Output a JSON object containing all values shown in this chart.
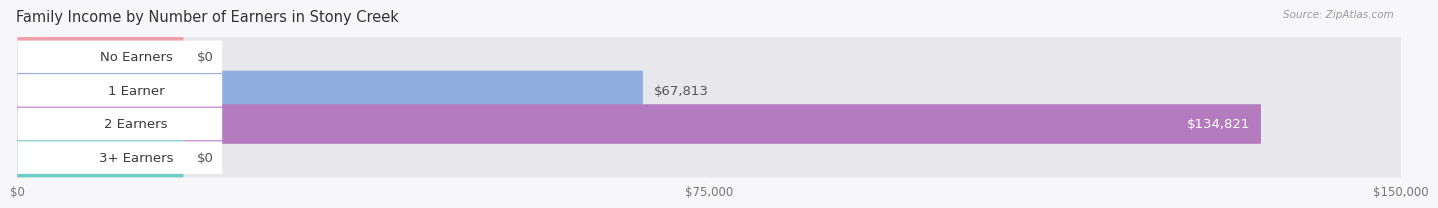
{
  "title": "Family Income by Number of Earners in Stony Creek",
  "source": "Source: ZipAtlas.com",
  "categories": [
    "No Earners",
    "1 Earner",
    "2 Earners",
    "3+ Earners"
  ],
  "values": [
    0,
    67813,
    134821,
    0
  ],
  "bar_colors": [
    "#f2a0a8",
    "#91aee0",
    "#b57bbf",
    "#6dcdc8"
  ],
  "bar_bg_color": "#e8e8ec",
  "max_value": 150000,
  "xlim": [
    0,
    150000
  ],
  "xticks": [
    0,
    75000,
    150000
  ],
  "xtick_labels": [
    "$0",
    "$75,000",
    "$150,000"
  ],
  "fig_bg_color": "#f7f7f9",
  "bar_height": 0.62,
  "label_fontsize": 9.5,
  "title_fontsize": 10.5,
  "value_label_color": "#555555",
  "value_label_color_on_bar": "#ffffff",
  "zero_bar_width": 18000
}
